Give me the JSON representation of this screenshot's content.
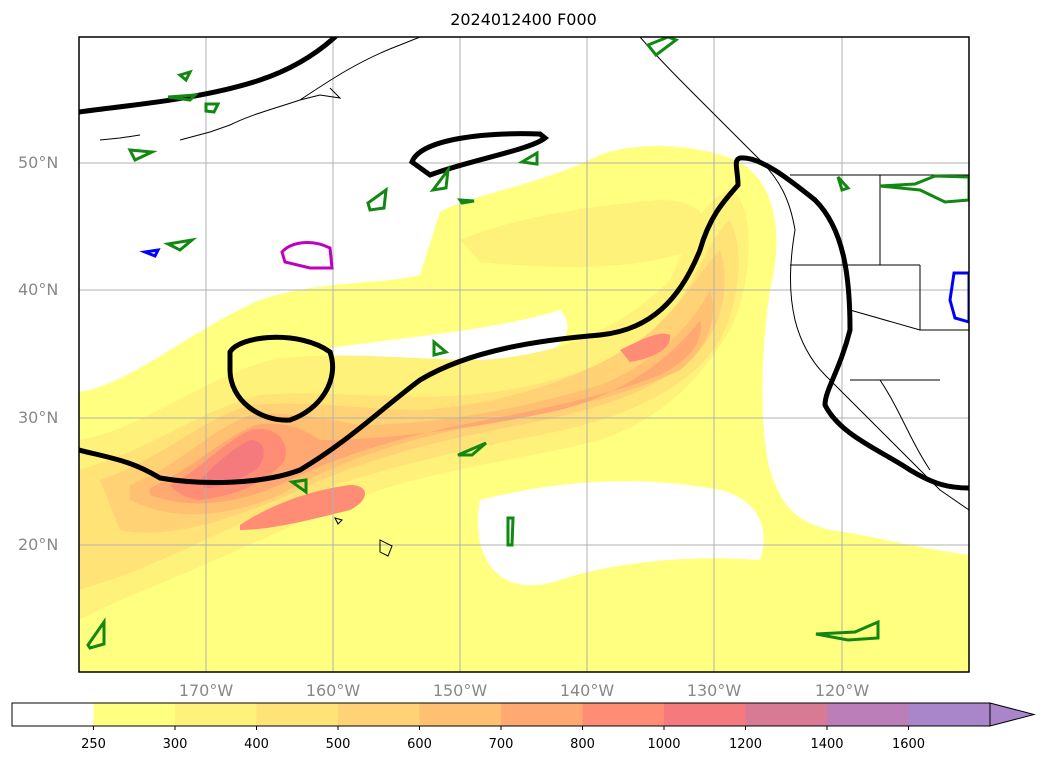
{
  "title": "2024012400 F000",
  "lat_labels": [
    "50°N",
    "40°N",
    "30°N",
    "20°N"
  ],
  "lon_labels": [
    "170°W",
    "160°W",
    "150°W",
    "140°W",
    "130°W",
    "120°W"
  ],
  "colorbar": {
    "ticks": [
      "250",
      "300",
      "400",
      "500",
      "600",
      "700",
      "800",
      "1000",
      "1200",
      "1400",
      "1600"
    ],
    "colors": [
      "#ffffff",
      "#ffff80",
      "#fff27a",
      "#ffe377",
      "#ffd375",
      "#ffc171",
      "#ffa872",
      "#ff8c74",
      "#f47a7e",
      "#d97a95",
      "#bb7eb8",
      "#a886c9"
    ],
    "extend": "max"
  }
}
